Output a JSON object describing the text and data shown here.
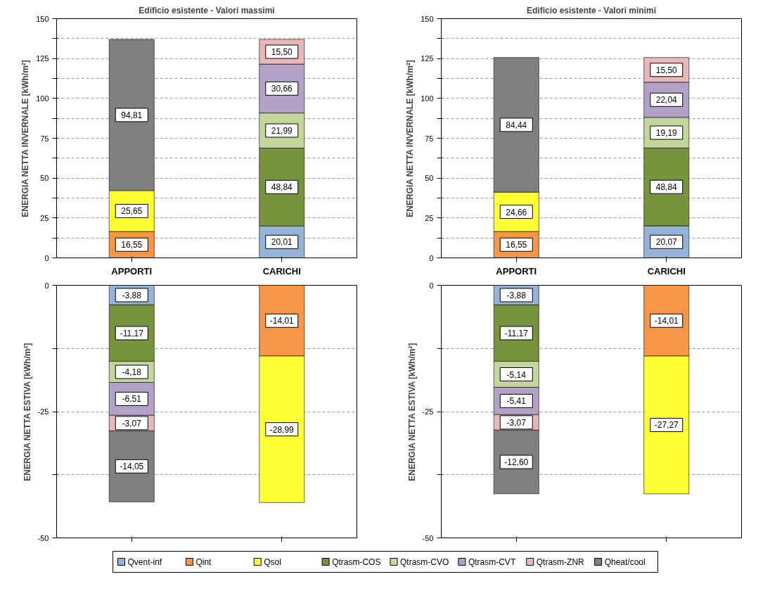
{
  "chart_data": [
    {
      "type": "bar",
      "stacked": true,
      "title": "Edificio esistente - Valori massimi",
      "ylabel": "ENERGIA NETTA INVERNALE [kWh/m²]",
      "categories": [
        "APPORTI",
        "CARICHI"
      ],
      "ylim": [
        0,
        150
      ],
      "yticks": [
        0,
        {
          "value": 12.5,
          "label": null
        },
        25,
        {
          "value": 37.5,
          "label": null
        },
        50,
        {
          "value": 62.5,
          "label": null
        },
        75,
        {
          "value": 87.5,
          "label": null
        },
        100,
        {
          "value": 112.5,
          "label": null
        },
        125,
        {
          "value": 137.5,
          "label": null
        },
        150
      ],
      "grid": "y",
      "legend": "bottom",
      "series": [
        {
          "name": "Qvent-inf",
          "color": "#95b3d7",
          "values": [
            null,
            20.01
          ],
          "value_labels": [
            null,
            "20,01"
          ]
        },
        {
          "name": "Qint",
          "color": "#f79646",
          "values": [
            16.55,
            null
          ],
          "value_labels": [
            "16,55",
            null
          ]
        },
        {
          "name": "Qsol",
          "color": "#ffff33",
          "values": [
            25.65,
            null
          ],
          "value_labels": [
            "25,65",
            null
          ]
        },
        {
          "name": "Qtrasm-COS",
          "color": "#77933c",
          "values": [
            null,
            48.84
          ],
          "value_labels": [
            null,
            "48,84"
          ]
        },
        {
          "name": "Qtrasm-CVO",
          "color": "#c3d69b",
          "values": [
            null,
            21.99
          ],
          "value_labels": [
            null,
            "21,99"
          ]
        },
        {
          "name": "Qtrasm-CVT",
          "color": "#b3a2c7",
          "values": [
            null,
            30.66
          ],
          "value_labels": [
            null,
            "30,66"
          ]
        },
        {
          "name": "Qtrasm-ZNR",
          "color": "#e6b9b8",
          "values": [
            null,
            15.5
          ],
          "value_labels": [
            null,
            "15,50"
          ]
        },
        {
          "name": "Qheat/cool",
          "color": "#808080",
          "values": [
            94.81,
            null
          ],
          "value_labels": [
            "94,81",
            null
          ]
        }
      ]
    },
    {
      "type": "bar",
      "stacked": true,
      "title": "Edificio esistente - Valori minimi",
      "ylabel": "ENERGIA NETTA INVERNALE [kWh/m²]",
      "categories": [
        "APPORTI",
        "CARICHI"
      ],
      "ylim": [
        0,
        150
      ],
      "yticks": [
        0,
        {
          "value": 12.5,
          "label": null
        },
        25,
        {
          "value": 37.5,
          "label": null
        },
        50,
        {
          "value": 62.5,
          "label": null
        },
        75,
        {
          "value": 87.5,
          "label": null
        },
        100,
        {
          "value": 112.5,
          "label": null
        },
        125,
        {
          "value": 137.5,
          "label": null
        },
        150
      ],
      "grid": "y",
      "series": [
        {
          "color": "#95b3d7",
          "values": [
            null,
            20.07
          ],
          "value_labels": [
            null,
            "20,07"
          ]
        },
        {
          "color": "#f79646",
          "values": [
            16.55,
            null
          ],
          "value_labels": [
            "16,55",
            null
          ]
        },
        {
          "color": "#ffff33",
          "values": [
            24.66,
            null
          ],
          "value_labels": [
            "24,66",
            null
          ]
        },
        {
          "color": "#77933c",
          "values": [
            null,
            48.84
          ],
          "value_labels": [
            null,
            "48,84"
          ]
        },
        {
          "color": "#c3d69b",
          "values": [
            null,
            19.19
          ],
          "value_labels": [
            null,
            "19,19"
          ]
        },
        {
          "color": "#b3a2c7",
          "values": [
            null,
            22.04
          ],
          "value_labels": [
            null,
            "22,04"
          ]
        },
        {
          "color": "#e6b9b8",
          "values": [
            null,
            15.5
          ],
          "value_labels": [
            null,
            "15,50"
          ]
        },
        {
          "color": "#808080",
          "values": [
            84.44,
            null
          ],
          "value_labels": [
            "84,44",
            null
          ]
        }
      ]
    },
    {
      "type": "bar",
      "stacked": true,
      "ylabel": "ENERGIA NETTA ESTIVA [kWh/m²]",
      "categories": [
        null,
        null
      ],
      "ylim": [
        -50,
        0
      ],
      "yticks": [
        -50,
        {
          "value": -37.5,
          "label": null
        },
        -25,
        {
          "value": -12.5,
          "label": null
        },
        0
      ],
      "grid": "y",
      "series": [
        {
          "color": "#95b3d7",
          "values": [
            -3.88,
            null
          ],
          "value_labels": [
            "-3,88",
            null
          ]
        },
        {
          "color": "#f79646",
          "values": [
            null,
            -14.01
          ],
          "value_labels": [
            null,
            "-14,01"
          ]
        },
        {
          "color": "#ffff33",
          "values": [
            null,
            -28.99
          ],
          "value_labels": [
            null,
            "-28,99"
          ]
        },
        {
          "color": "#77933c",
          "values": [
            -11.17,
            null
          ],
          "value_labels": [
            "-11,17",
            null
          ]
        },
        {
          "color": "#c3d69b",
          "values": [
            -4.18,
            null
          ],
          "value_labels": [
            "-4,18",
            null
          ]
        },
        {
          "color": "#b3a2c7",
          "values": [
            -6.51,
            null
          ],
          "value_labels": [
            "-6,51",
            null
          ]
        },
        {
          "color": "#e6b9b8",
          "values": [
            -3.07,
            null
          ],
          "value_labels": [
            "-3,07",
            null
          ]
        },
        {
          "color": "#808080",
          "values": [
            -14.05,
            null
          ],
          "value_labels": [
            "-14,05",
            null
          ]
        }
      ]
    },
    {
      "type": "bar",
      "stacked": true,
      "ylabel": "ENERGIA NETTA ESTIVA [kWh/m²]",
      "categories": [
        null,
        null
      ],
      "ylim": [
        -50,
        0
      ],
      "yticks": [
        -50,
        {
          "value": -37.5,
          "label": null
        },
        -25,
        {
          "value": -12.5,
          "label": null
        },
        0
      ],
      "grid": "y",
      "series": [
        {
          "color": "#95b3d7",
          "values": [
            -3.88,
            null
          ],
          "value_labels": [
            "-3,88",
            null
          ]
        },
        {
          "color": "#f79646",
          "values": [
            null,
            -14.01
          ],
          "value_labels": [
            null,
            "-14,01"
          ]
        },
        {
          "color": "#ffff33",
          "values": [
            null,
            -27.27
          ],
          "value_labels": [
            null,
            "-27,27"
          ]
        },
        {
          "color": "#77933c",
          "values": [
            -11.17,
            null
          ],
          "value_labels": [
            "-11,17",
            null
          ]
        },
        {
          "color": "#c3d69b",
          "values": [
            -5.14,
            null
          ],
          "value_labels": [
            "-5,14",
            null
          ]
        },
        {
          "color": "#b3a2c7",
          "values": [
            -5.41,
            null
          ],
          "value_labels": [
            "-5,41",
            null
          ]
        },
        {
          "color": "#e6b9b8",
          "values": [
            -3.07,
            null
          ],
          "value_labels": [
            "-3,07",
            null
          ]
        },
        {
          "color": "#808080",
          "values": [
            -12.6,
            null
          ],
          "value_labels": [
            "-12,60",
            null
          ]
        }
      ]
    }
  ]
}
